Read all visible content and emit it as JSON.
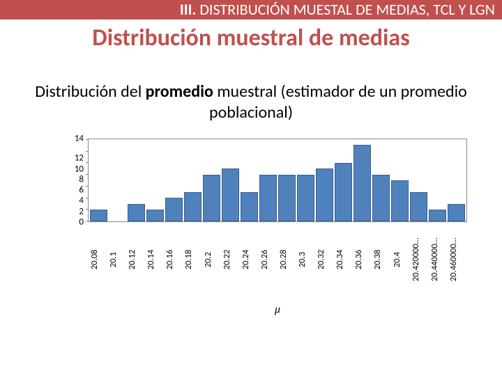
{
  "banner": {
    "roman": "III.",
    "text": " DISTRIBUCIÓN MUESTAL DE MEDIAS, TCL Y LGN"
  },
  "title": "Distribución muestral de medias",
  "subtitle_pre": "Distribución del ",
  "subtitle_bold": "promedio",
  "subtitle_post": " muestral (estimador de un promedio poblacional)",
  "xaxis_label": "μ",
  "chart": {
    "type": "histogram",
    "ylim": [
      0,
      14
    ],
    "ytick_step": 2,
    "yticks": [
      "0",
      "2",
      "4",
      "6",
      "8",
      "10",
      "12",
      "14"
    ],
    "bar_color": "#4f81bd",
    "bar_border": "#385d8a",
    "axis_color": "#888888",
    "background": "#ffffff",
    "categories": [
      "20.08",
      "20.1",
      "20.12",
      "20.14",
      "20.16",
      "20.18",
      "20.2",
      "20.22",
      "20.24",
      "20.26",
      "20.28",
      "20.3",
      "20.32",
      "20.34",
      "20.36",
      "20.38",
      "20.4",
      "20.420000…",
      "20.440000…",
      "20.460000…"
    ],
    "values": [
      2,
      0,
      3,
      2,
      4,
      5,
      8,
      9,
      5,
      8,
      8,
      8,
      9,
      10,
      13,
      8,
      7,
      5,
      2,
      3
    ]
  }
}
